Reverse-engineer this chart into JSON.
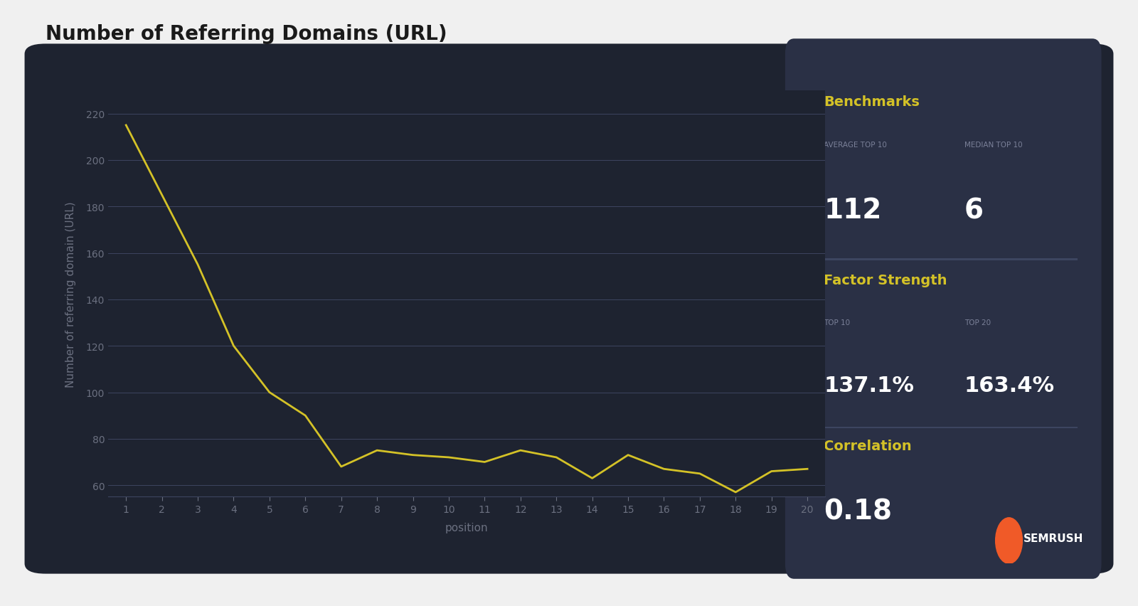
{
  "title": "Number of Referring Domains (URL)",
  "positions": [
    1,
    2,
    3,
    4,
    5,
    6,
    7,
    8,
    9,
    10,
    11,
    12,
    13,
    14,
    15,
    16,
    17,
    18,
    19,
    20
  ],
  "values": [
    215,
    185,
    155,
    120,
    100,
    90,
    68,
    75,
    73,
    72,
    70,
    75,
    72,
    63,
    73,
    67,
    65,
    57,
    66,
    67
  ],
  "line_color": "#d4c227",
  "ylabel": "Number of referring domain (URL)",
  "xlabel": "position",
  "ylim": [
    55,
    230
  ],
  "yticks": [
    60,
    80,
    100,
    120,
    140,
    160,
    180,
    200,
    220
  ],
  "bg_color": "#1e2330",
  "right_panel_color": "#2a3045",
  "text_color": "#ffffff",
  "yellow_color": "#d4c227",
  "gray_text": "#7a8098",
  "title_fontsize": 20,
  "axis_label_fontsize": 11,
  "tick_fontsize": 10,
  "benchmarks_title": "Benchmarks",
  "avg_top10_label": "AVERAGE TOP 10",
  "avg_top10_value": "112",
  "median_top10_label": "MEDIAN TOP 10",
  "median_top10_value": "6",
  "factor_strength_title": "Factor Strength",
  "top10_label": "TOP 10",
  "top10_value": "137.1%",
  "top20_label": "TOP 20",
  "top20_value": "163.4%",
  "correlation_title": "Correlation",
  "correlation_value": "0.18",
  "semrush_text": "SEMRUSH",
  "grid_color": "#3d4560",
  "tick_color": "#6b7080",
  "divider_color": "#3d4560"
}
